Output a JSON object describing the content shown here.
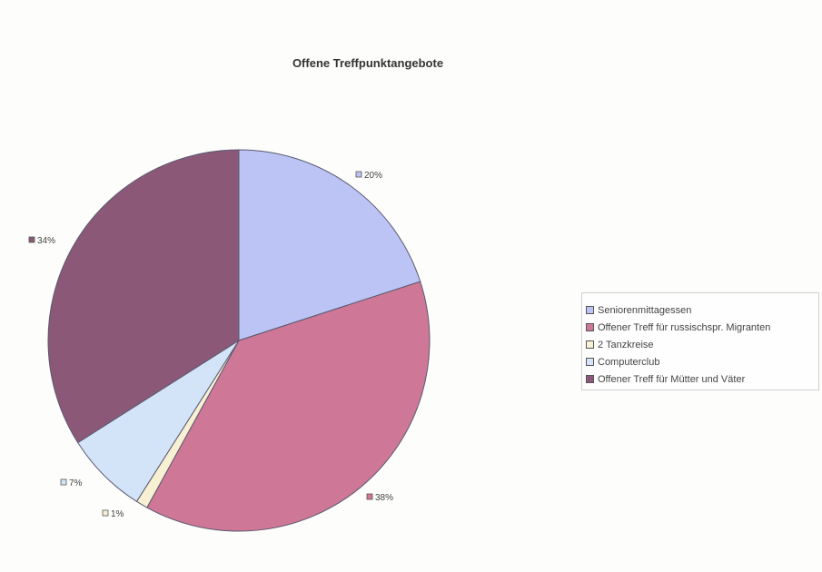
{
  "chart_data": {
    "type": "pie",
    "title": "Offene Treffpunktangebote",
    "series": [
      {
        "name": "Seniorenmittagessen",
        "value": 20,
        "label": "20%",
        "color": "#bcc4f5"
      },
      {
        "name": "Offener Treff für russischspr. Migranten",
        "value": 38,
        "label": "38%",
        "color": "#cf7796"
      },
      {
        "name": "2 Tanzkreise",
        "value": 1,
        "label": "1%",
        "color": "#f7f0d2"
      },
      {
        "name": "Computerclub",
        "value": 7,
        "label": "7%",
        "color": "#d4e4f8"
      },
      {
        "name": "Offener Treff für Mütter und Väter",
        "value": 34,
        "label": "34%",
        "color": "#8b5878"
      }
    ],
    "legend_position": "right"
  }
}
